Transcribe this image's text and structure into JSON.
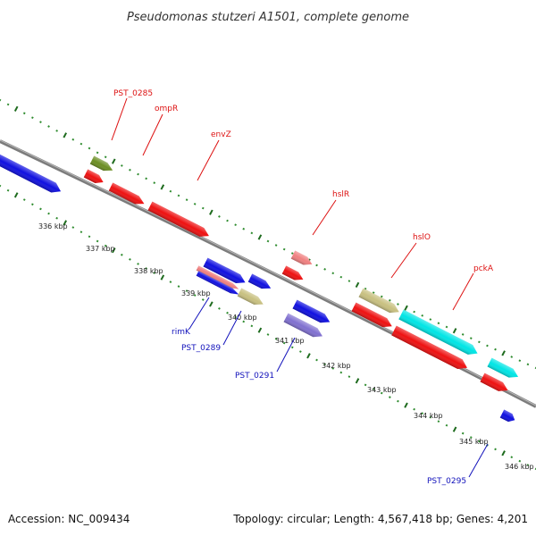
{
  "title": "Pseudomonas stutzeri A1501, complete genome",
  "footer": {
    "accession": "Accession: NC_009434",
    "summary": "Topology: circular; Length: 4,567,418 bp; Genes: 4,201"
  },
  "colors": {
    "backbone": "#8a8a8a",
    "tick_dot": "#2e8b2e",
    "tick_major": "#1e6b1e",
    "label_forward": "#dd1111",
    "label_reverse": "#1111bb"
  },
  "scale": {
    "labels": [
      "336 kbp",
      "337 kbp",
      "338 kbp",
      "339 kbp",
      "340 kbp",
      "341 kbp",
      "342 kbp",
      "343 kbp",
      "344 kbp",
      "345 kbp",
      "346 kbp"
    ]
  },
  "genes": [
    {
      "id": "g-left-blue",
      "color": "#1010e0",
      "dir": "forward"
    },
    {
      "id": "g-pst0285",
      "color": "#6b8e23",
      "dir": "forward"
    },
    {
      "id": "g-ompr-small",
      "color": "#ee1111",
      "dir": "forward"
    },
    {
      "id": "g-ompr",
      "color": "#ee1111",
      "dir": "forward"
    },
    {
      "id": "g-envz",
      "color": "#ee1111",
      "dir": "forward"
    },
    {
      "id": "g-rev-blue-1",
      "color": "#1010e0",
      "dir": "forward"
    },
    {
      "id": "g-rev-blue-2",
      "color": "#1010e0",
      "dir": "forward"
    },
    {
      "id": "g-rimk-pink",
      "color": "#f08080",
      "dir": "forward"
    },
    {
      "id": "g-rimk",
      "color": "#1010e0",
      "dir": "forward"
    },
    {
      "id": "g-pst0289",
      "color": "#c8c080",
      "dir": "forward"
    },
    {
      "id": "g-hslr-pink",
      "color": "#f08080",
      "dir": "forward"
    },
    {
      "id": "g-hslr",
      "color": "#ee1111",
      "dir": "forward"
    },
    {
      "id": "g-pst0291-blue",
      "color": "#1010e0",
      "dir": "forward"
    },
    {
      "id": "g-pst0291",
      "color": "#8070d0",
      "dir": "forward"
    },
    {
      "id": "g-hslo-olive",
      "color": "#c8c080",
      "dir": "forward"
    },
    {
      "id": "g-hslo",
      "color": "#ee1111",
      "dir": "forward"
    },
    {
      "id": "g-pcka-cyan",
      "color": "#00e5e5",
      "dir": "forward"
    },
    {
      "id": "g-pcka",
      "color": "#ee1111",
      "dir": "forward"
    },
    {
      "id": "g-cyan-2",
      "color": "#00e5e5",
      "dir": "forward"
    },
    {
      "id": "g-red-end",
      "color": "#ee1111",
      "dir": "forward"
    },
    {
      "id": "g-pst0295",
      "color": "#1010e0",
      "dir": "forward"
    }
  ],
  "gene_labels": [
    {
      "text": "PST_0285",
      "strand": "forward"
    },
    {
      "text": "ompR",
      "strand": "forward"
    },
    {
      "text": "envZ",
      "strand": "forward"
    },
    {
      "text": "hslR",
      "strand": "forward"
    },
    {
      "text": "hslO",
      "strand": "forward"
    },
    {
      "text": "pckA",
      "strand": "forward"
    },
    {
      "text": "rimK",
      "strand": "reverse"
    },
    {
      "text": "PST_0289",
      "strand": "reverse"
    },
    {
      "text": "PST_0291",
      "strand": "reverse"
    },
    {
      "text": "PST_0295",
      "strand": "reverse"
    }
  ]
}
